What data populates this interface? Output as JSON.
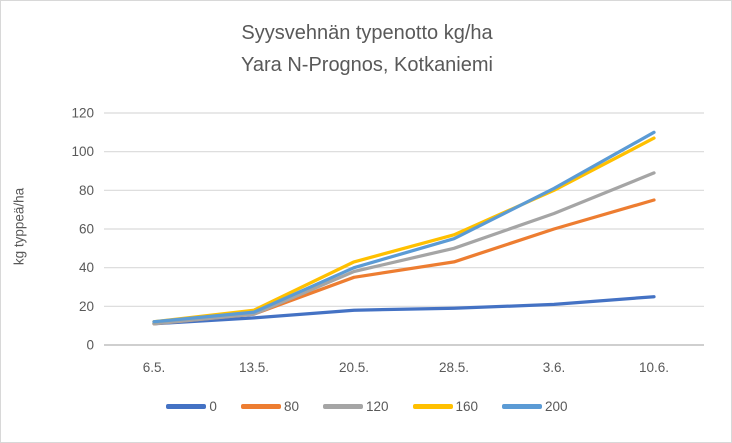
{
  "chart": {
    "title_line1": "Syysvehnän typenotto kg/ha",
    "title_line2": "Yara N-Prognos, Kotkaniemi",
    "y_axis_label": "kg typpeä/ha"
  },
  "chart_data": {
    "type": "line",
    "title": "Syysvehnän typenotto kg/ha",
    "subtitle": "Yara N-Prognos, Kotkaniemi",
    "xlabel": "",
    "ylabel": "kg typpeä/ha",
    "categories": [
      "6.5.",
      "13.5.",
      "20.5.",
      "28.5.",
      "3.6.",
      "10.6."
    ],
    "series": [
      {
        "name": "0",
        "color": "#4472C4",
        "values": [
          11,
          14,
          18,
          19,
          21,
          25
        ]
      },
      {
        "name": "80",
        "color": "#ED7D31",
        "values": [
          11,
          16,
          35,
          43,
          60,
          75
        ]
      },
      {
        "name": "120",
        "color": "#A5A5A5",
        "values": [
          11,
          16,
          38,
          50,
          68,
          89
        ]
      },
      {
        "name": "160",
        "color": "#FFC000",
        "values": [
          12,
          18,
          43,
          57,
          80,
          107
        ]
      },
      {
        "name": "200",
        "color": "#5B9BD5",
        "values": [
          12,
          17,
          40,
          55,
          81,
          110
        ]
      }
    ],
    "ylim": [
      0,
      120
    ],
    "ytick_step": 20,
    "ytick_labels": [
      "0",
      "20",
      "40",
      "60",
      "80",
      "100",
      "120"
    ],
    "grid": true,
    "legend_position": "bottom",
    "text_color": "#595959",
    "grid_color": "#d9d9d9",
    "axis_line_color": "#bfbfbf"
  }
}
